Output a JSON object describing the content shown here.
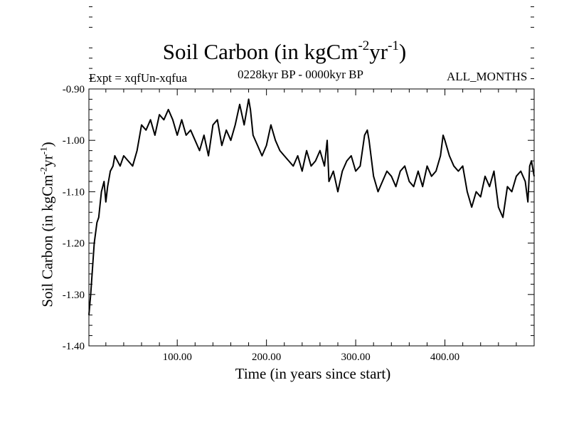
{
  "chart_data": {
    "type": "line",
    "title": {
      "main": "Soil Carbon (in kgCm",
      "exp1": "-2",
      "mid": "yr",
      "exp2": "-1",
      "end": ")"
    },
    "subtitle_left": "Expt = xqfUn-xqfua",
    "subtitle_center": "0228kyr BP - 0000kyr BP",
    "subtitle_right": "ALL_MONTHS",
    "xlabel": "Time (in years since start)",
    "ylabel": {
      "main": "Soil Carbon (in kgCm",
      "exp1": "-2",
      "mid": "yr",
      "exp2": "-1",
      "end": ")"
    },
    "xlim": [
      1,
      500
    ],
    "ylim": [
      -1.4,
      -0.9
    ],
    "xticks": [
      100,
      200,
      300,
      400
    ],
    "xtick_labels": [
      "100.00",
      "200.00",
      "300.00",
      "400.00"
    ],
    "yticks": [
      -1.4,
      -1.3,
      -1.2,
      -1.1,
      -1.0,
      -0.9
    ],
    "ytick_labels": [
      "-1.40",
      "-1.30",
      "-1.20",
      "-1.10",
      "-1.00",
      "-0.90"
    ],
    "series": [
      {
        "name": "Soil Carbon",
        "color": "#000000",
        "x": [
          1,
          3,
          5,
          7,
          10,
          12,
          15,
          18,
          20,
          22,
          25,
          28,
          30,
          33,
          36,
          40,
          45,
          50,
          55,
          58,
          60,
          65,
          70,
          75,
          80,
          85,
          90,
          95,
          100,
          105,
          110,
          115,
          120,
          125,
          130,
          135,
          140,
          145,
          150,
          155,
          160,
          165,
          170,
          175,
          180,
          182,
          185,
          190,
          195,
          200,
          205,
          210,
          215,
          220,
          225,
          230,
          235,
          240,
          245,
          250,
          255,
          260,
          265,
          268,
          270,
          275,
          280,
          285,
          290,
          295,
          300,
          305,
          310,
          313,
          315,
          320,
          325,
          330,
          335,
          340,
          345,
          350,
          355,
          360,
          365,
          370,
          375,
          380,
          385,
          390,
          395,
          398,
          400,
          405,
          410,
          415,
          420,
          425,
          430,
          435,
          440,
          445,
          450,
          455,
          460,
          465,
          470,
          475,
          480,
          485,
          490,
          493,
          495,
          497,
          500
        ],
        "values": [
          -1.34,
          -1.3,
          -1.25,
          -1.2,
          -1.16,
          -1.15,
          -1.1,
          -1.08,
          -1.12,
          -1.09,
          -1.06,
          -1.05,
          -1.03,
          -1.04,
          -1.05,
          -1.03,
          -1.04,
          -1.05,
          -1.02,
          -0.99,
          -0.97,
          -0.98,
          -0.96,
          -0.99,
          -0.95,
          -0.96,
          -0.94,
          -0.96,
          -0.99,
          -0.96,
          -0.99,
          -0.98,
          -1.0,
          -1.02,
          -0.99,
          -1.03,
          -0.97,
          -0.96,
          -1.01,
          -0.98,
          -1.0,
          -0.97,
          -0.93,
          -0.97,
          -0.92,
          -0.94,
          -0.99,
          -1.01,
          -1.03,
          -1.01,
          -0.97,
          -1.0,
          -1.02,
          -1.03,
          -1.04,
          -1.05,
          -1.03,
          -1.06,
          -1.02,
          -1.05,
          -1.04,
          -1.02,
          -1.05,
          -1.0,
          -1.08,
          -1.06,
          -1.1,
          -1.06,
          -1.04,
          -1.03,
          -1.06,
          -1.05,
          -0.99,
          -0.98,
          -1.0,
          -1.07,
          -1.1,
          -1.08,
          -1.06,
          -1.07,
          -1.09,
          -1.06,
          -1.05,
          -1.08,
          -1.09,
          -1.06,
          -1.09,
          -1.05,
          -1.07,
          -1.06,
          -1.03,
          -0.99,
          -1.0,
          -1.03,
          -1.05,
          -1.06,
          -1.05,
          -1.1,
          -1.13,
          -1.1,
          -1.11,
          -1.07,
          -1.09,
          -1.06,
          -1.13,
          -1.15,
          -1.09,
          -1.1,
          -1.07,
          -1.06,
          -1.08,
          -1.12,
          -1.05,
          -1.04,
          -1.07
        ]
      }
    ]
  }
}
